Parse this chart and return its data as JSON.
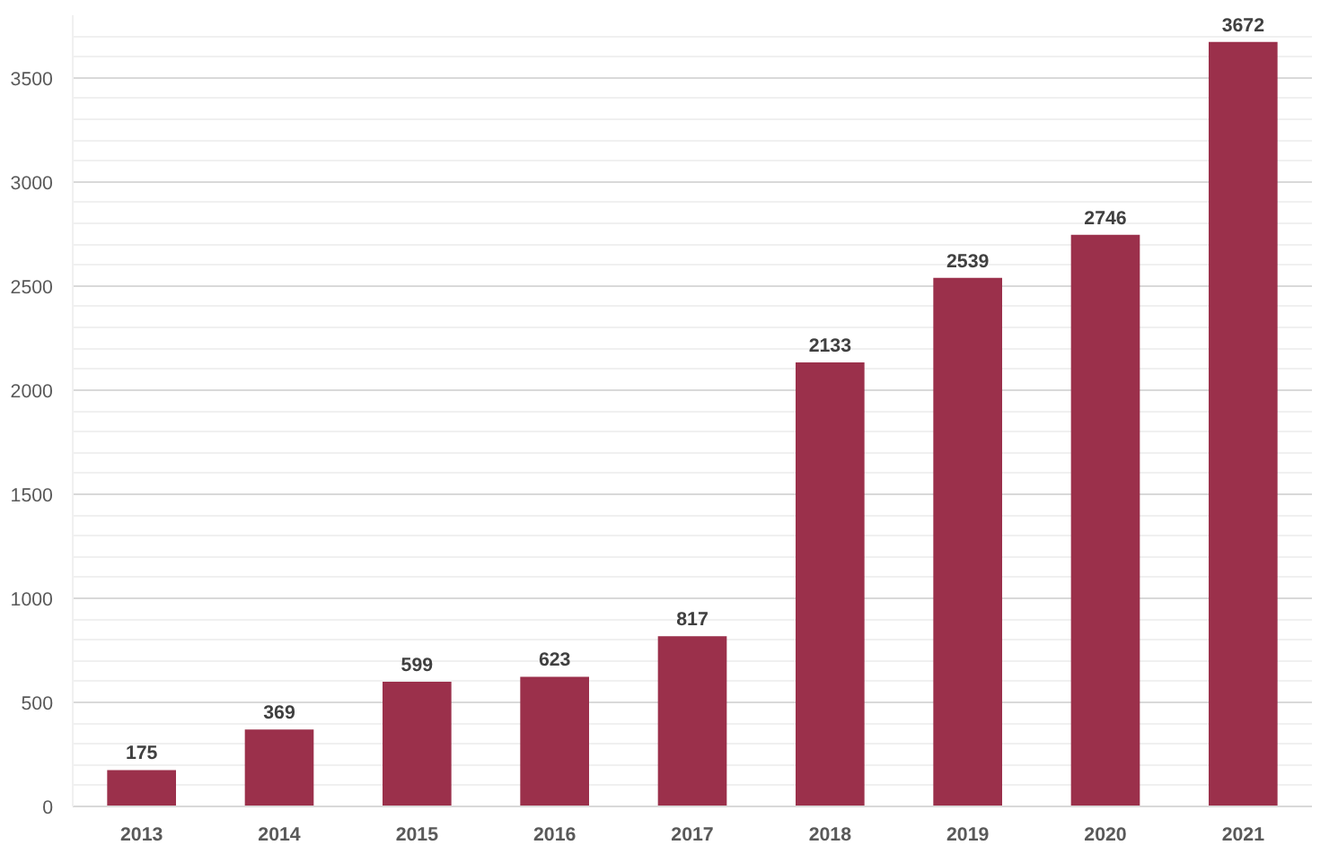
{
  "chart_data": {
    "type": "bar",
    "categories": [
      "2013",
      "2014",
      "2015",
      "2016",
      "2017",
      "2018",
      "2019",
      "2020",
      "2021"
    ],
    "values": [
      175,
      369,
      599,
      623,
      817,
      2133,
      2539,
      2746,
      3672
    ],
    "color": "#9b304b",
    "ylim": [
      0,
      3800
    ],
    "yticks": [
      0,
      500,
      1000,
      1500,
      2000,
      2500,
      3000,
      3500
    ],
    "grid": "y",
    "data_labels": true
  }
}
